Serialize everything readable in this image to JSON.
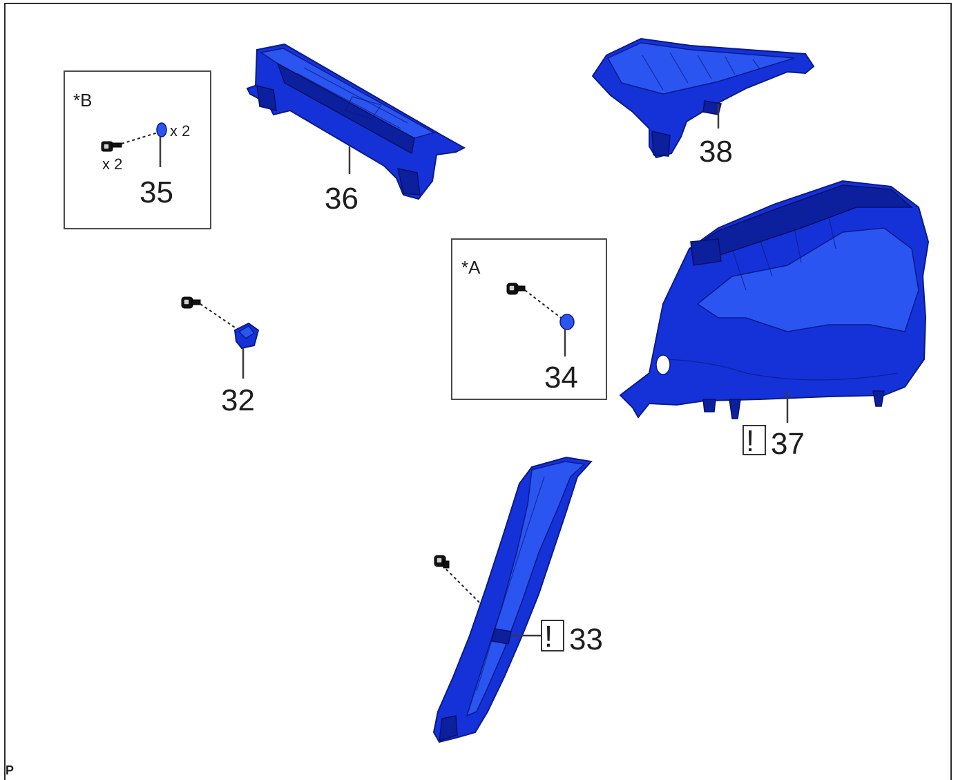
{
  "diagram": {
    "corner_code": "P",
    "callouts": {
      "p32": "32",
      "p33": "33",
      "p34": "34",
      "p35": "35",
      "p36": "36",
      "p37": "37",
      "p38": "38"
    },
    "inset_a": {
      "label": "*A"
    },
    "inset_b": {
      "label": "*B",
      "qty_clip": "x 2",
      "qty_screw": "x 2"
    },
    "warning_symbol": "!",
    "part_color": "#1432d8"
  }
}
